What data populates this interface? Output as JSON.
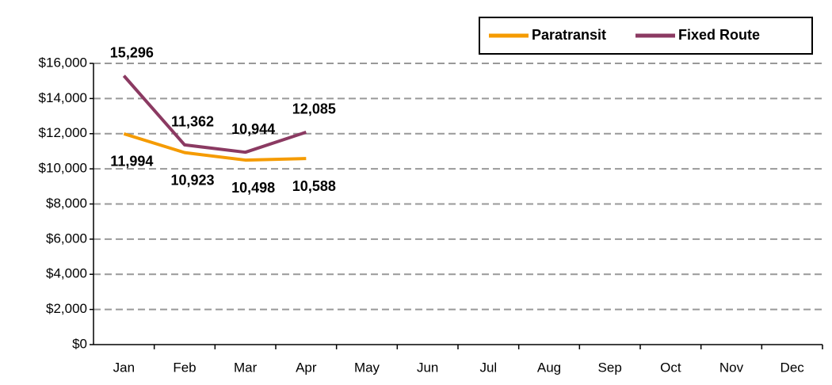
{
  "chart_data": {
    "type": "line",
    "categories": [
      "Jan",
      "Feb",
      "Mar",
      "Apr",
      "May",
      "Jun",
      "Jul",
      "Aug",
      "Sep",
      "Oct",
      "Nov",
      "Dec"
    ],
    "series": [
      {
        "name": "Paratransit",
        "color": "#f59b00",
        "values": [
          11994,
          10923,
          10498,
          10588,
          null,
          null,
          null,
          null,
          null,
          null,
          null,
          null
        ],
        "value_labels": [
          "11,994",
          "10,923",
          "10,498",
          "10,588",
          null,
          null,
          null,
          null,
          null,
          null,
          null,
          null
        ]
      },
      {
        "name": "Fixed Route",
        "color": "#8b3a62",
        "values": [
          15296,
          11362,
          10944,
          12085,
          null,
          null,
          null,
          null,
          null,
          null,
          null,
          null
        ],
        "value_labels": [
          "15,296",
          "11,362",
          "10,944",
          "12,085",
          null,
          null,
          null,
          null,
          null,
          null,
          null,
          null
        ]
      }
    ],
    "ylim": [
      0,
      16000
    ],
    "yticks": [
      {
        "value": 0,
        "label": "$0"
      },
      {
        "value": 2000,
        "label": "$2,000"
      },
      {
        "value": 4000,
        "label": "$4,000"
      },
      {
        "value": 6000,
        "label": "$6,000"
      },
      {
        "value": 8000,
        "label": "$8,000"
      },
      {
        "value": 10000,
        "label": "$10,000"
      },
      {
        "value": 12000,
        "label": "$12,000"
      },
      {
        "value": 14000,
        "label": "$14,000"
      },
      {
        "value": 16000,
        "label": "$16,000"
      }
    ],
    "grid": true,
    "legend": "top right"
  }
}
